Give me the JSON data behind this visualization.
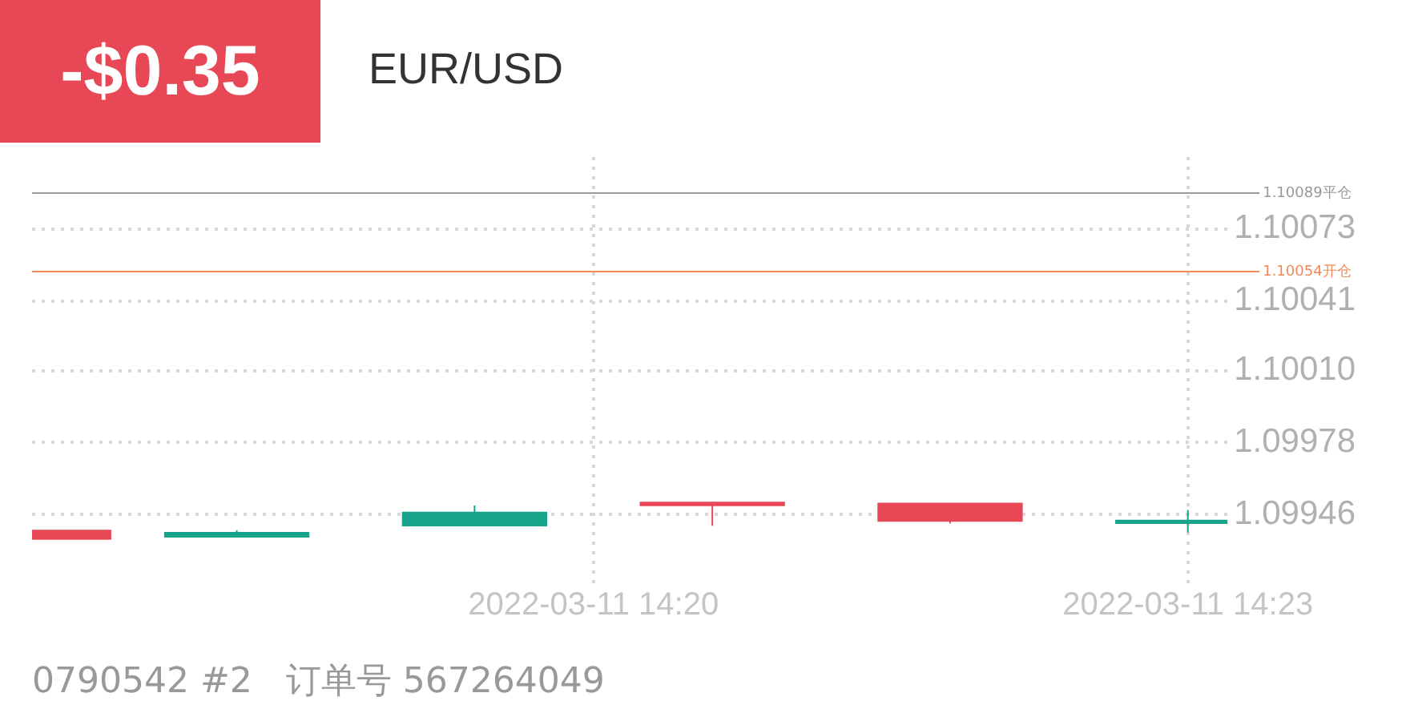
{
  "chart_data": {
    "type": "candlestick",
    "title": "EUR/USD",
    "subtitle": "-$0.35",
    "x": [
      "2022-03-11T14:17:12",
      "2022-03-11T14:18:12",
      "2022-03-11T14:19:24",
      "2022-03-11T14:20:36",
      "2022-03-11T14:21:48",
      "2022-03-11T14:23:00"
    ],
    "ohlc": [
      [
        1.09939,
        1.09939,
        1.09935,
        1.09935
      ],
      [
        1.09936,
        1.09939,
        1.09936,
        1.09938
      ],
      [
        1.09941,
        1.0995,
        1.09941,
        1.09947
      ],
      [
        1.09951,
        1.09951,
        1.09941,
        1.0995
      ],
      [
        1.09951,
        1.09951,
        1.09942,
        1.09943
      ],
      [
        1.09942,
        1.09948,
        1.09938,
        1.09943
      ]
    ],
    "colors": [
      "#e84855",
      "#16a58a",
      "#16a58a",
      "#e84855",
      "#e84855",
      "#16a58a"
    ],
    "xlim": [
      "2022-03-11T14:17:10",
      "2022-03-11T14:23:12"
    ],
    "xticks": [
      {
        "value": "2022-03-11T14:20",
        "label": "2022-03-11 14:20"
      },
      {
        "value": "2022-03-11T14:23",
        "label": "2022-03-11 14:23"
      }
    ],
    "ylim": [
      1.09914,
      1.10105
    ],
    "yticks": [
      {
        "value": 1.09946,
        "label": "1.09946"
      },
      {
        "value": 1.09978,
        "label": "1.09978"
      },
      {
        "value": 1.1001,
        "label": "1.10010"
      },
      {
        "value": 1.10041,
        "label": "1.10041"
      },
      {
        "value": 1.10073,
        "label": "1.10073"
      }
    ],
    "ref_lines": [
      {
        "axis": "y",
        "value": 1.10089,
        "label": "1.10089平仓",
        "color": "#999999"
      },
      {
        "axis": "y",
        "value": 1.10054,
        "label": "1.10054开仓",
        "color": "#f08a5d"
      }
    ],
    "grid": true,
    "legend": false,
    "annotations": [
      "0790542 #2   订单号 567264049"
    ]
  }
}
